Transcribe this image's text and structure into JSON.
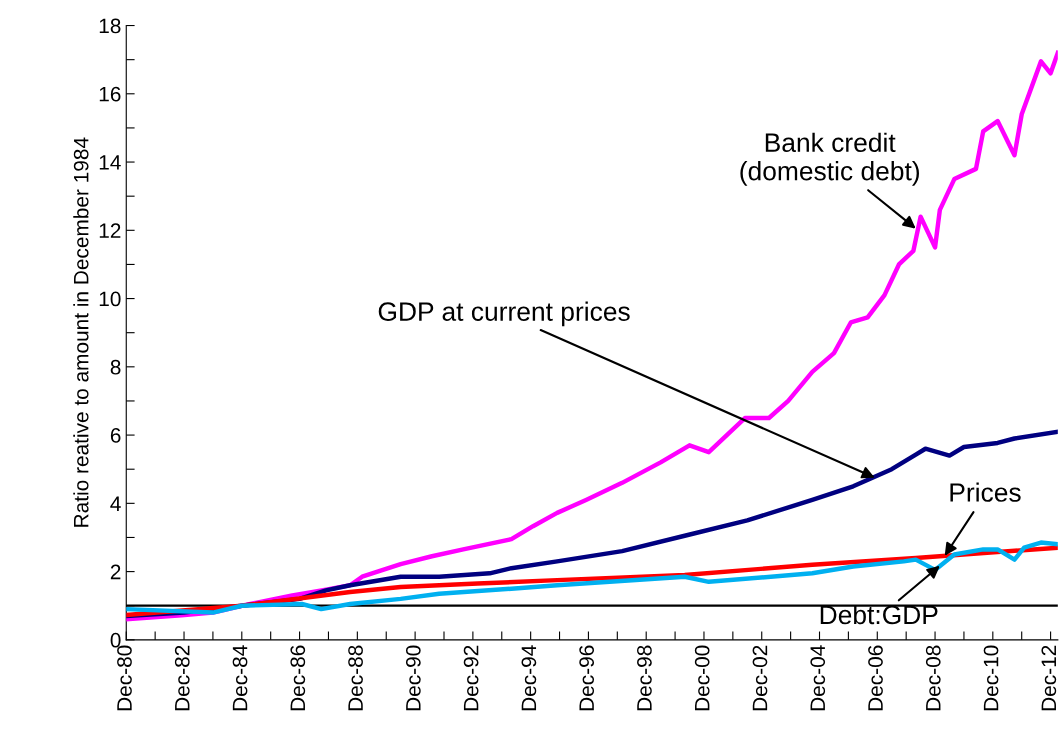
{
  "chart_data": {
    "type": "line",
    "ylabel": "Ratio reative to amount in December 1984",
    "xlim": [
      "1980-12",
      "2013-03"
    ],
    "xticks": [
      {
        "value": "1980-12",
        "label": "Dec-80"
      },
      {
        "value": "1981-12",
        "label": null
      },
      {
        "value": "1982-12",
        "label": "Dec-82"
      },
      {
        "value": "1983-12",
        "label": null
      },
      {
        "value": "1984-12",
        "label": "Dec-84"
      },
      {
        "value": "1985-12",
        "label": null
      },
      {
        "value": "1986-12",
        "label": "Dec-86"
      },
      {
        "value": "1987-12",
        "label": null
      },
      {
        "value": "1988-12",
        "label": "Dec-88"
      },
      {
        "value": "1989-12",
        "label": null
      },
      {
        "value": "1990-12",
        "label": "Dec-90"
      },
      {
        "value": "1991-12",
        "label": null
      },
      {
        "value": "1992-12",
        "label": "Dec-92"
      },
      {
        "value": "1993-12",
        "label": null
      },
      {
        "value": "1994-12",
        "label": "Dec-94"
      },
      {
        "value": "1995-12",
        "label": null
      },
      {
        "value": "1996-12",
        "label": "Dec-96"
      },
      {
        "value": "1997-12",
        "label": null
      },
      {
        "value": "1998-12",
        "label": "Dec-98"
      },
      {
        "value": "1999-12",
        "label": null
      },
      {
        "value": "2000-12",
        "label": "Dec-00"
      },
      {
        "value": "2001-12",
        "label": null
      },
      {
        "value": "2002-12",
        "label": "Dec-02"
      },
      {
        "value": "2003-12",
        "label": null
      },
      {
        "value": "2004-12",
        "label": "Dec-04"
      },
      {
        "value": "2005-12",
        "label": null
      },
      {
        "value": "2006-12",
        "label": "Dec-06"
      },
      {
        "value": "2007-12",
        "label": null
      },
      {
        "value": "2008-12",
        "label": "Dec-08"
      },
      {
        "value": "2009-12",
        "label": null
      },
      {
        "value": "2010-12",
        "label": "Dec-10"
      },
      {
        "value": "2011-12",
        "label": null
      },
      {
        "value": "2012-12",
        "label": "Dec-12"
      }
    ],
    "ylim": [
      0,
      18
    ],
    "yticks": [
      0,
      {
        "value": 1,
        "label": null
      },
      2,
      {
        "value": 3,
        "label": null
      },
      4,
      {
        "value": 5,
        "label": null
      },
      6,
      {
        "value": 7,
        "label": null
      },
      8,
      {
        "value": 9,
        "label": null
      },
      10,
      {
        "value": 11,
        "label": null
      },
      12,
      {
        "value": 13,
        "label": null
      },
      14,
      {
        "value": 15,
        "label": null
      },
      16,
      {
        "value": 17,
        "label": null
      },
      18
    ],
    "grid": false,
    "legend": false,
    "marker": "none",
    "line_style": "solid",
    "ref_lines": [
      {
        "axis": "y",
        "value": 1,
        "color": "#000000",
        "line_style": "solid"
      }
    ],
    "series": [
      {
        "color": "#ff00ff",
        "x": [
          "1980-12",
          "1982-11",
          "1983-12",
          "1984-12",
          "1986-09",
          "1987-11",
          "1988-09",
          "1989-02",
          "1990-06",
          "1991-07",
          "1992-08",
          "1994-04",
          "1995-01",
          "1995-11",
          "1996-11",
          "1998-02",
          "1999-06",
          "2000-06",
          "2001-02",
          "2002-05",
          "2003-03",
          "2003-11",
          "2004-09",
          "2005-06",
          "2006-01",
          "2006-08",
          "2007-03",
          "2007-09",
          "2008-03",
          "2008-06",
          "2008-12",
          "2009-02",
          "2009-08",
          "2010-05",
          "2010-08",
          "2011-02",
          "2011-09",
          "2011-12",
          "2012-08",
          "2012-12",
          "2013-03"
        ],
        "values": [
          0.6,
          0.72,
          0.8,
          1.0,
          1.3,
          1.47,
          1.6,
          1.85,
          2.22,
          2.45,
          2.65,
          2.95,
          3.33,
          3.72,
          4.1,
          4.6,
          5.2,
          5.7,
          5.5,
          6.5,
          6.5,
          7.0,
          7.85,
          8.4,
          9.3,
          9.45,
          10.1,
          11.0,
          11.4,
          12.4,
          11.5,
          12.6,
          13.5,
          13.8,
          14.9,
          15.2,
          14.2,
          15.4,
          16.95,
          16.6,
          17.2
        ]
      },
      {
        "color": "#000080",
        "x": [
          "1980-12",
          "1982-12",
          "1984-12",
          "1986-12",
          "1987-11",
          "1988-09",
          "1990-06",
          "1991-10",
          "1993-07",
          "1994-04",
          "1995-11",
          "1998-02",
          "2000-04",
          "2002-06",
          "2004-09",
          "2006-02",
          "2007-06",
          "2008-04",
          "2008-08",
          "2009-06",
          "2009-12",
          "2011-02",
          "2011-09",
          "2013-03"
        ],
        "values": [
          0.7,
          0.8,
          1.0,
          1.2,
          1.45,
          1.6,
          1.85,
          1.85,
          1.95,
          2.1,
          2.3,
          2.6,
          3.05,
          3.5,
          4.1,
          4.5,
          5.0,
          5.43,
          5.6,
          5.4,
          5.65,
          5.77,
          5.9,
          6.1
        ]
      },
      {
        "color": "#ff0000",
        "x": [
          "1980-12",
          "1984-12",
          "1988-09",
          "1990-06",
          "1993-02",
          "1995-11",
          "2000-04",
          "2004-09",
          "2008-04",
          "2013-03"
        ],
        "values": [
          0.73,
          1.0,
          1.4,
          1.55,
          1.65,
          1.75,
          1.9,
          2.2,
          2.4,
          2.7
        ]
      },
      {
        "color": "#00b0f0",
        "x": [
          "1980-12",
          "1983-12",
          "1984-12",
          "1987-01",
          "1987-09",
          "1988-09",
          "1990-06",
          "1991-10",
          "1994-04",
          "1995-11",
          "2000-04",
          "2001-02",
          "2004-09",
          "2006-02",
          "2007-11",
          "2008-04",
          "2008-12",
          "2009-08",
          "2010-08",
          "2011-02",
          "2011-09",
          "2012-01",
          "2012-08",
          "2013-03"
        ],
        "values": [
          0.9,
          0.8,
          1.0,
          1.05,
          0.9,
          1.05,
          1.2,
          1.35,
          1.5,
          1.6,
          1.85,
          1.7,
          1.95,
          2.15,
          2.3,
          2.35,
          2.05,
          2.5,
          2.65,
          2.65,
          2.35,
          2.7,
          2.85,
          2.8
        ]
      }
    ],
    "annotations": [
      {
        "text": "Bank credit\n(domestic debt)",
        "x": "2008-04",
        "y": 12.05
      },
      {
        "text": "GDP at current prices",
        "x": "2006-11",
        "y": 4.75
      },
      {
        "text": "Prices",
        "x": "2009-04",
        "y": 2.46
      },
      {
        "text": "Debt:GDP",
        "x": "2009-02",
        "y": 2.17
      }
    ]
  }
}
